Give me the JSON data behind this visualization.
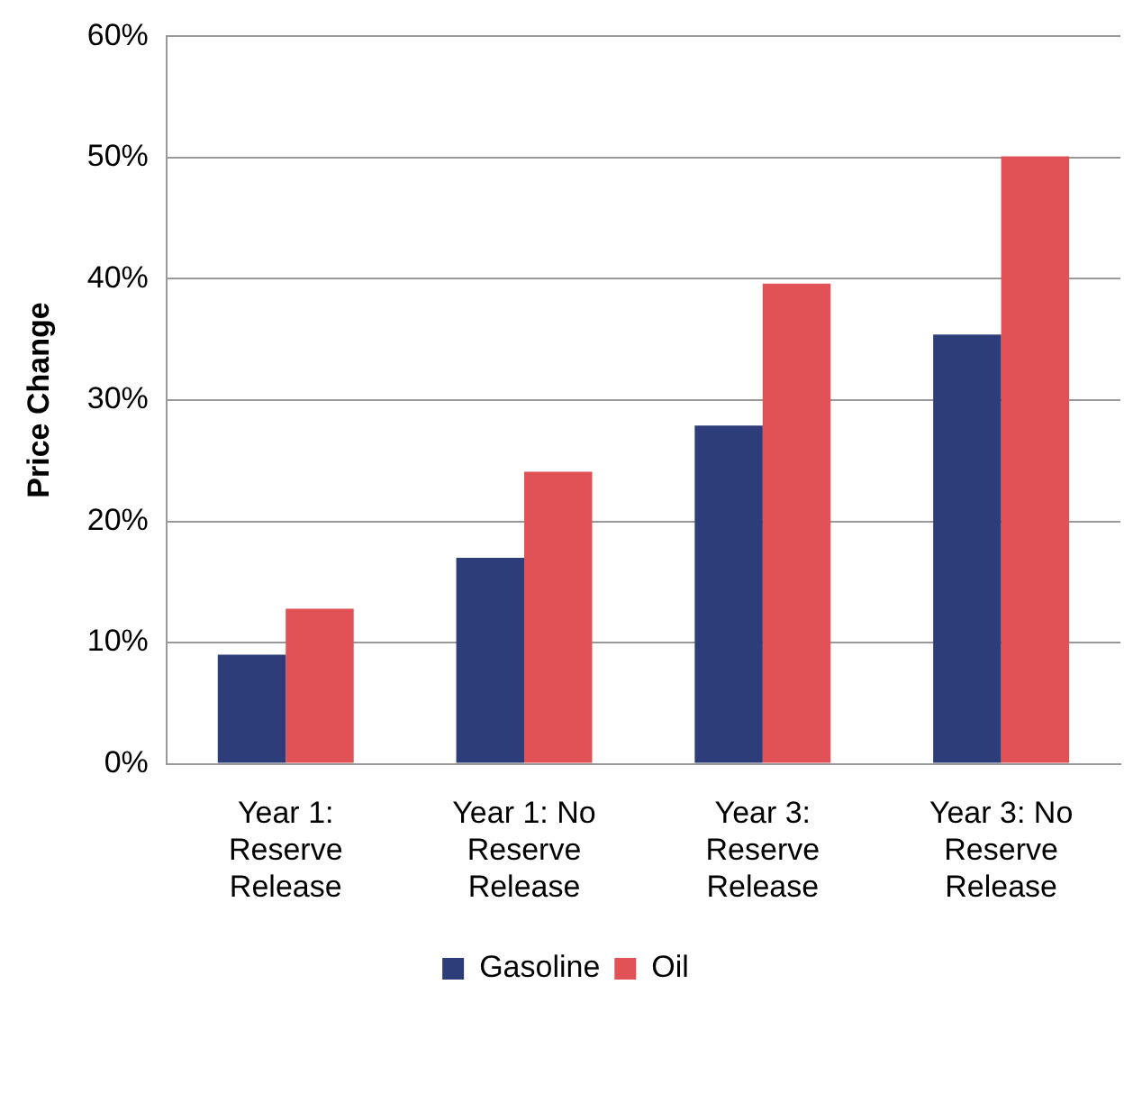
{
  "chart_data": {
    "type": "bar",
    "ylabel": "Price Change",
    "categories": [
      "Year 1: Reserve Release",
      "Year 1: No Reserve Release",
      "Year 3: Reserve Release",
      "Year 3: No Reserve Release"
    ],
    "series": [
      {
        "name": "Gasoline",
        "color": "#2c3d7a",
        "values": [
          9.0,
          17.0,
          27.9,
          35.4
        ]
      },
      {
        "name": "Oil",
        "color": "#e05255",
        "values": [
          12.8,
          24.1,
          39.6,
          50.1
        ]
      }
    ],
    "ylim": [
      0,
      60
    ],
    "yticks": [
      {
        "value": 0,
        "label": "0%"
      },
      {
        "value": 10,
        "label": "10%"
      },
      {
        "value": 20,
        "label": "20%"
      },
      {
        "value": 30,
        "label": "30%"
      },
      {
        "value": 40,
        "label": "40%"
      },
      {
        "value": 50,
        "label": "50%"
      },
      {
        "value": 60,
        "label": "60%"
      }
    ],
    "grid": "y",
    "legend": "bottom"
  }
}
